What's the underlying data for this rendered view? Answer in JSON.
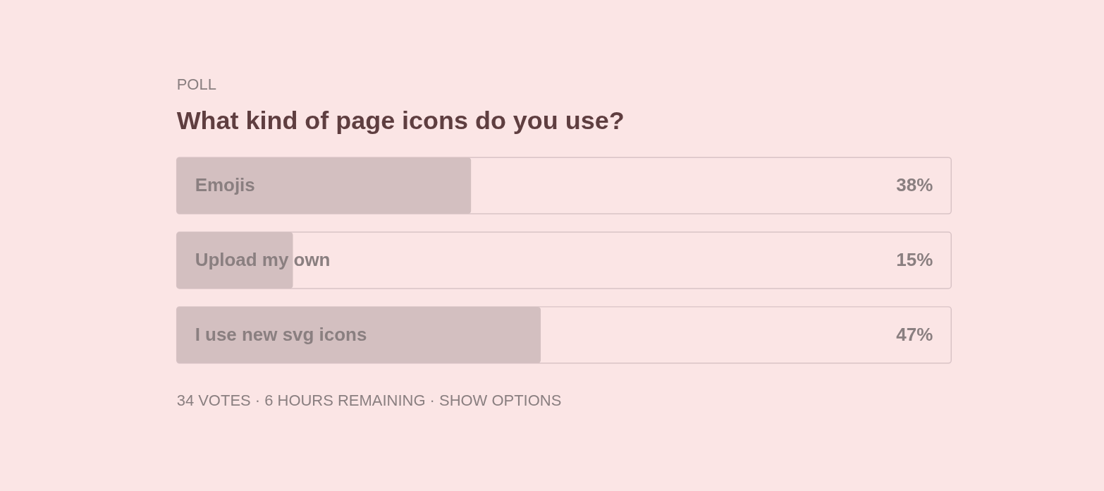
{
  "chart_data": {
    "type": "bar",
    "orientation": "horizontal",
    "subtitle": "POLL",
    "title": "What kind of page icons do you use?",
    "categories": [
      "Emojis",
      "Upload my own",
      "I use new svg icons"
    ],
    "values": [
      38,
      15,
      47
    ],
    "value_labels": [
      "38%",
      "15%",
      "47%"
    ],
    "color": "#d3bfc0",
    "annotations": [
      "34 VOTES · 6 HOURS REMAINING · SHOW OPTIONS"
    ],
    "tick_labels": false
  }
}
